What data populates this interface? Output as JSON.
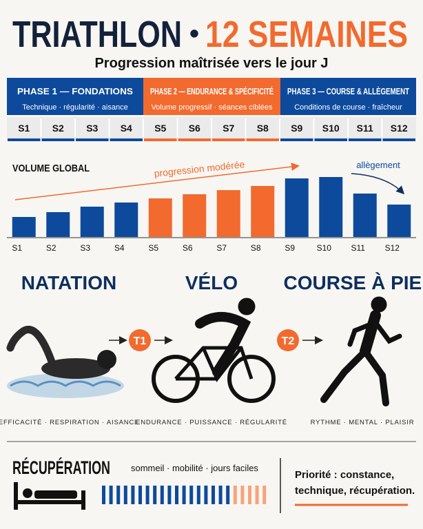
{
  "header": {
    "title_left": "TRIATHLON",
    "title_dot": "•",
    "title_right": "12 SEMAINES",
    "subtitle": "Progression maîtrisée vers le jour J"
  },
  "phases": [
    {
      "name": "PHASE 1 — FONDATIONS",
      "description": "Technique · régularité · aisance",
      "color": "#0d4a9c"
    },
    {
      "name": "PHASE 2 — ENDURANCE & SPÉCIFICITÉ",
      "description": "Volume progressif · séances ciblées",
      "color": "#f26a2e"
    },
    {
      "name": "PHASE 3 — COURSE & ALLÈGEMENT",
      "description": "Conditions de course · fraîcheur",
      "color": "#0d4a9c"
    }
  ],
  "chart_data": {
    "type": "bar",
    "title": "VOLUME GLOBAL",
    "categories": [
      "S1",
      "S2",
      "S3",
      "S4",
      "S5",
      "S6",
      "S7",
      "S8",
      "S9",
      "S10",
      "S11",
      "S12"
    ],
    "values": [
      29,
      36,
      44,
      50,
      56,
      62,
      68,
      74,
      85,
      87,
      63,
      47
    ],
    "colors": [
      "#0d4a9c",
      "#0d4a9c",
      "#0d4a9c",
      "#0d4a9c",
      "#f26a2e",
      "#f26a2e",
      "#f26a2e",
      "#f26a2e",
      "#0d4a9c",
      "#0d4a9c",
      "#0d4a9c",
      "#0d4a9c"
    ],
    "annotations": [
      "progression modérée",
      "allègement"
    ]
  },
  "disciplines": [
    {
      "name": "NATATION",
      "keywords": "EFFICACITÉ · RESPIRATION · AISANCE"
    },
    {
      "name": "VÉLO",
      "keywords": "ENDURANCE · PUISSANCE · RÉGULARITÉ"
    },
    {
      "name": "COURSE À PIED",
      "keywords": "RYTHME · MENTAL · PLAISIR"
    }
  ],
  "transitions": [
    "T1",
    "T2"
  ],
  "recovery": {
    "title": "RÉCUPÉRATION",
    "subtitle": "sommeil · mobilité · jours faciles",
    "priority_line1": "Priorité : constance,",
    "priority_line2": "technique, récupération."
  }
}
